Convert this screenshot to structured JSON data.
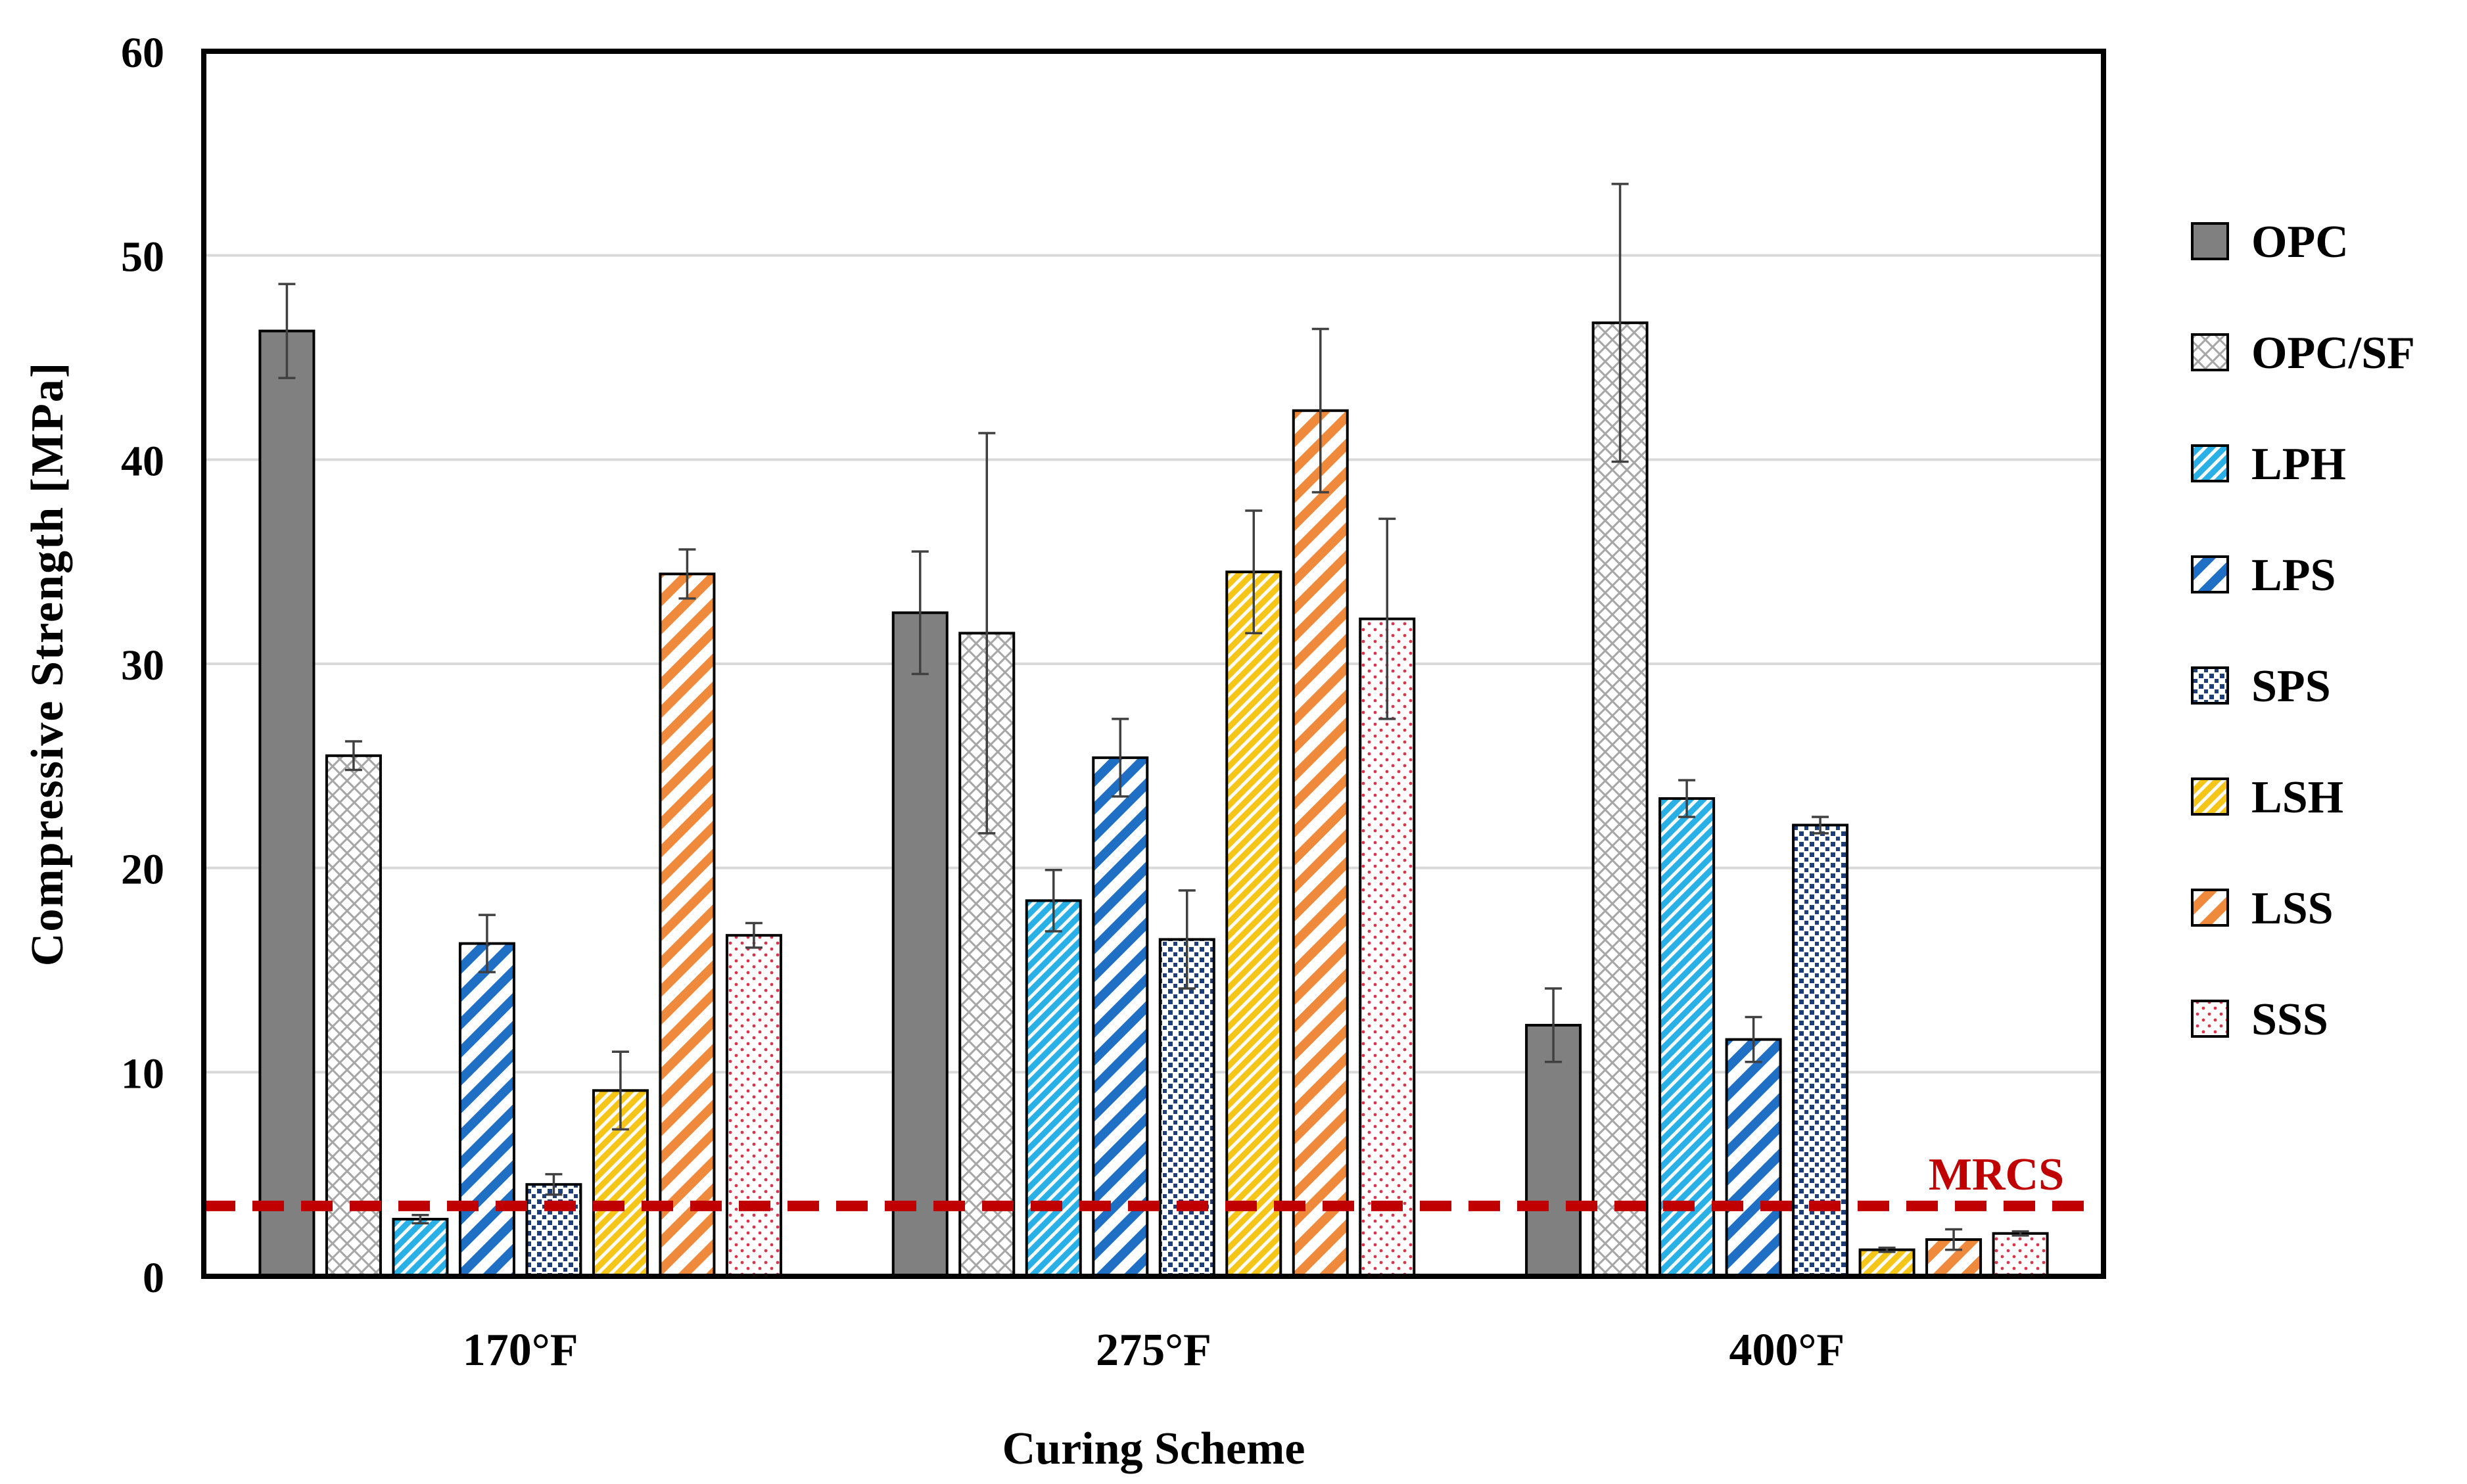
{
  "chart_data": {
    "type": "bar",
    "title": "",
    "xlabel": "Curing Scheme",
    "ylabel": "Compressive Strength [MPa]",
    "ylim": [
      0,
      60
    ],
    "yticks": [
      0,
      10,
      20,
      30,
      40,
      50,
      60
    ],
    "grid": true,
    "legend_position": "right",
    "categories": [
      "170°F",
      "275°F",
      "400°F"
    ],
    "series": [
      {
        "name": "OPC",
        "fill": "solid",
        "color": "#808080",
        "values": [
          46.3,
          32.5,
          12.3
        ],
        "errors": [
          2.3,
          3.0,
          1.8
        ]
      },
      {
        "name": "OPC/SF",
        "fill": "crosshatch",
        "color": "#a6a6a6",
        "values": [
          25.5,
          31.5,
          46.7
        ],
        "errors": [
          0.7,
          9.8,
          6.8
        ]
      },
      {
        "name": "LPH",
        "fill": "finediag",
        "color": "#29b0e6",
        "values": [
          2.8,
          18.4,
          23.4
        ],
        "errors": [
          0.2,
          1.5,
          0.9
        ]
      },
      {
        "name": "LPS",
        "fill": "widediag",
        "color": "#1f6fc4",
        "values": [
          16.3,
          25.4,
          11.6
        ],
        "errors": [
          1.4,
          1.9,
          1.1
        ]
      },
      {
        "name": "SPS",
        "fill": "dots",
        "color": "#1f3f7a",
        "values": [
          4.5,
          16.5,
          22.1
        ],
        "errors": [
          0.5,
          2.4,
          0.4
        ]
      },
      {
        "name": "LSH",
        "fill": "finediag",
        "color": "#f5c518",
        "values": [
          9.1,
          34.5,
          1.3
        ],
        "errors": [
          1.9,
          3.0,
          0.1
        ]
      },
      {
        "name": "LSS",
        "fill": "widediag",
        "color": "#ef8a3c",
        "values": [
          34.4,
          42.4,
          1.8
        ],
        "errors": [
          1.2,
          4.0,
          0.5
        ]
      },
      {
        "name": "SSS",
        "fill": "sparsedots",
        "color": "#d9344a",
        "values": [
          16.7,
          32.2,
          2.1
        ],
        "errors": [
          0.6,
          4.9,
          0.1
        ]
      }
    ],
    "reference_line": {
      "label": "MRCS",
      "value": 3.45,
      "color": "#c00000"
    }
  }
}
